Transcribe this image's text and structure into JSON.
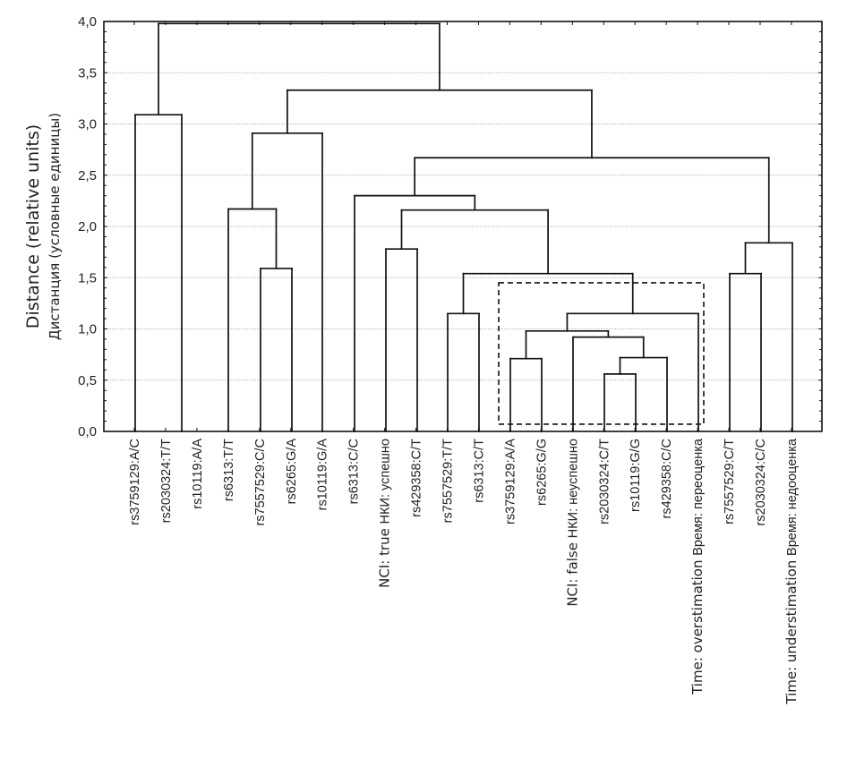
{
  "chart_data": {
    "type": "dendrogram",
    "title": "",
    "ylabel": "Distance (relative units)",
    "ylabel_secondary": "Дистанция (условные единицы)",
    "xlabel": "",
    "ylim": [
      0,
      4.0
    ],
    "yticks": [
      "0,0",
      "0,5",
      "1,0",
      "1,5",
      "2,0",
      "2,5",
      "3,0",
      "3,5",
      "4,0"
    ],
    "ytick_values": [
      0,
      0.5,
      1.0,
      1.5,
      2.0,
      2.5,
      3.0,
      3.5,
      4.0
    ],
    "grid": "horizontal-dotted",
    "leaves": [
      {
        "label": "rs3759129:A/C",
        "prefix": ""
      },
      {
        "label": "rs2030324:T/T",
        "prefix": ""
      },
      {
        "label": "rs10119:A/A",
        "prefix": ""
      },
      {
        "label": "rs6313:T/T",
        "prefix": ""
      },
      {
        "label": "rs7557529:C/C",
        "prefix": ""
      },
      {
        "label": "rs6265:G/A",
        "prefix": ""
      },
      {
        "label": "rs10119:G/A",
        "prefix": ""
      },
      {
        "label": "rs6313:C/C",
        "prefix": ""
      },
      {
        "label": "НКИ: успешно",
        "prefix": "NCI: true"
      },
      {
        "label": "rs429358:C/T",
        "prefix": ""
      },
      {
        "label": "rs7557529:T/T",
        "prefix": ""
      },
      {
        "label": "rs6313:C/T",
        "prefix": ""
      },
      {
        "label": "rs3759129:A/A",
        "prefix": ""
      },
      {
        "label": "rs6265:G/G",
        "prefix": ""
      },
      {
        "label": "НКИ: неуспешно",
        "prefix": "NCI: false"
      },
      {
        "label": "rs2030324:C/T",
        "prefix": ""
      },
      {
        "label": "rs10119:G/G",
        "prefix": ""
      },
      {
        "label": "rs429358:C/C",
        "prefix": ""
      },
      {
        "label": "Время: переоценка",
        "prefix": "Time: overstimation"
      },
      {
        "label": "rs7557529:C/T",
        "prefix": ""
      },
      {
        "label": "rs2030324:C/C",
        "prefix": ""
      },
      {
        "label": "Время: недооценка",
        "prefix": "Time: understimation"
      }
    ],
    "merges": [
      {
        "id": "A",
        "left": "L0",
        "right": "L1",
        "height": 3.09
      },
      {
        "id": "B",
        "left": "L4",
        "right": "L5",
        "height": 1.59
      },
      {
        "id": "C",
        "left": "L3",
        "right": "B",
        "height": 2.17
      },
      {
        "id": "D",
        "left": "C",
        "right": "L6",
        "height": 2.91
      },
      {
        "id": "E",
        "left": "L8",
        "right": "L9",
        "height": 1.78
      },
      {
        "id": "F",
        "left": "L10",
        "right": "L11",
        "height": 1.15
      },
      {
        "id": "G",
        "left": "L12",
        "right": "L13",
        "height": 0.71
      },
      {
        "id": "H",
        "left": "L15",
        "right": "L16",
        "height": 0.56
      },
      {
        "id": "I",
        "left": "H",
        "right": "L17",
        "height": 0.72
      },
      {
        "id": "J",
        "left": "L14",
        "right": "I",
        "height": 0.92
      },
      {
        "id": "K",
        "left": "G",
        "right": "J",
        "height": 0.98
      },
      {
        "id": "Lm",
        "left": "K",
        "right": "L18",
        "height": 1.15
      },
      {
        "id": "M",
        "left": "F",
        "right": "Lm",
        "height": 1.54
      },
      {
        "id": "N",
        "left": "E",
        "right": "M",
        "height": 2.16
      },
      {
        "id": "O",
        "left": "L7",
        "right": "N",
        "height": 2.3
      },
      {
        "id": "P",
        "left": "L19",
        "right": "L20",
        "height": 1.54
      },
      {
        "id": "Q",
        "left": "P",
        "right": "L21",
        "height": 1.84
      },
      {
        "id": "R",
        "left": "O",
        "right": "Q",
        "height": 2.67
      },
      {
        "id": "S",
        "left": "D",
        "right": "R",
        "height": 3.33
      },
      {
        "id": "T",
        "left": "A",
        "right": "S",
        "height": 3.98
      }
    ],
    "highlight_box": {
      "style": "dashed",
      "from_leaf": 12,
      "to_leaf": 18,
      "y_range": [
        0.07,
        1.45
      ]
    }
  }
}
